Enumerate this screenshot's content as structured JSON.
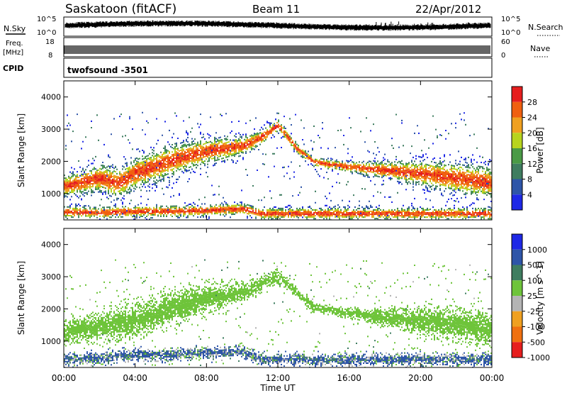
{
  "header": {
    "station": "Saskatoon (fitACF)",
    "beam": "Beam 11",
    "date": "22/Apr/2012"
  },
  "panels": {
    "noise": {
      "left_label": "N.Sky",
      "right_label": "N.Search",
      "left_ticks": [
        "10^5",
        "10^0"
      ],
      "right_ticks": [
        "10^5",
        "10^0"
      ]
    },
    "freq": {
      "left_label_1": "Freq.",
      "left_label_2": "[MHz]",
      "right_label": "Nave",
      "left_ticks": [
        "18",
        "8"
      ],
      "right_ticks": [
        "60",
        "0"
      ]
    },
    "cpid": {
      "label": "CPID",
      "value": "twofsound -3501"
    }
  },
  "axes": {
    "ylabel": "Slant Range [km]",
    "y_ticks": [
      "1000",
      "2000",
      "3000",
      "4000"
    ],
    "x_ticks": [
      "00:00",
      "04:00",
      "08:00",
      "12:00",
      "16:00",
      "20:00",
      "00:00"
    ],
    "xlabel": "Time UT"
  },
  "colors": {
    "power": [
      "#1e28e6",
      "#2e55a8",
      "#3f7d60",
      "#4a9a46",
      "#b8d41e",
      "#f0a020",
      "#f06010",
      "#e61e1e"
    ],
    "velocity": [
      "#1e28e6",
      "#2e55a8",
      "#3f7d60",
      "#6ec43a",
      "#b4b4b4",
      "#f0a020",
      "#f07010",
      "#e61e1e"
    ]
  },
  "chart_data": [
    {
      "type": "heatmap",
      "name": "Power",
      "colorbar_label": "Power [dB]",
      "colorbar_ticks": [
        "4",
        "8",
        "12",
        "16",
        "20",
        "24",
        "28"
      ],
      "x_range": [
        "00:00",
        "24:00"
      ],
      "y_range": [
        180,
        4500
      ],
      "backscatter_bands": [
        {
          "times": [
            0,
            2,
            3,
            4,
            6,
            8,
            10,
            11,
            12,
            13,
            14,
            16,
            18,
            20,
            22,
            24
          ],
          "ranges": [
            1200,
            1450,
            1300,
            1600,
            2000,
            2300,
            2450,
            2700,
            3100,
            2400,
            1950,
            1800,
            1700,
            1600,
            1450,
            1300
          ],
          "peak_power": 28
        },
        {
          "times": [
            0,
            2,
            4,
            6,
            8,
            10,
            11
          ],
          "ranges": [
            400,
            380,
            420,
            420,
            450,
            500,
            350
          ],
          "peak_power": 28
        }
      ]
    },
    {
      "type": "heatmap",
      "name": "Velocity",
      "colorbar_label": "Velocity [m s^-1]",
      "colorbar_ticks": [
        "1000",
        "500",
        "100",
        "25",
        "-25",
        "-100",
        "-500",
        "-1000"
      ],
      "x_range": [
        "00:00",
        "24:00"
      ],
      "y_range": [
        180,
        4500
      ],
      "backscatter_bands": [
        {
          "times": [
            0,
            2,
            4,
            6,
            8,
            10,
            12,
            14,
            16,
            18,
            20,
            22,
            24
          ],
          "ranges": [
            1250,
            1450,
            1600,
            2000,
            2300,
            2500,
            3000,
            2000,
            1850,
            1700,
            1600,
            1500,
            1300
          ],
          "typical_velocity": 0
        },
        {
          "times": [
            0,
            2,
            4,
            6,
            8,
            10,
            11
          ],
          "ranges": [
            400,
            450,
            550,
            550,
            600,
            650,
            400
          ],
          "typical_velocity": 150
        }
      ]
    }
  ]
}
